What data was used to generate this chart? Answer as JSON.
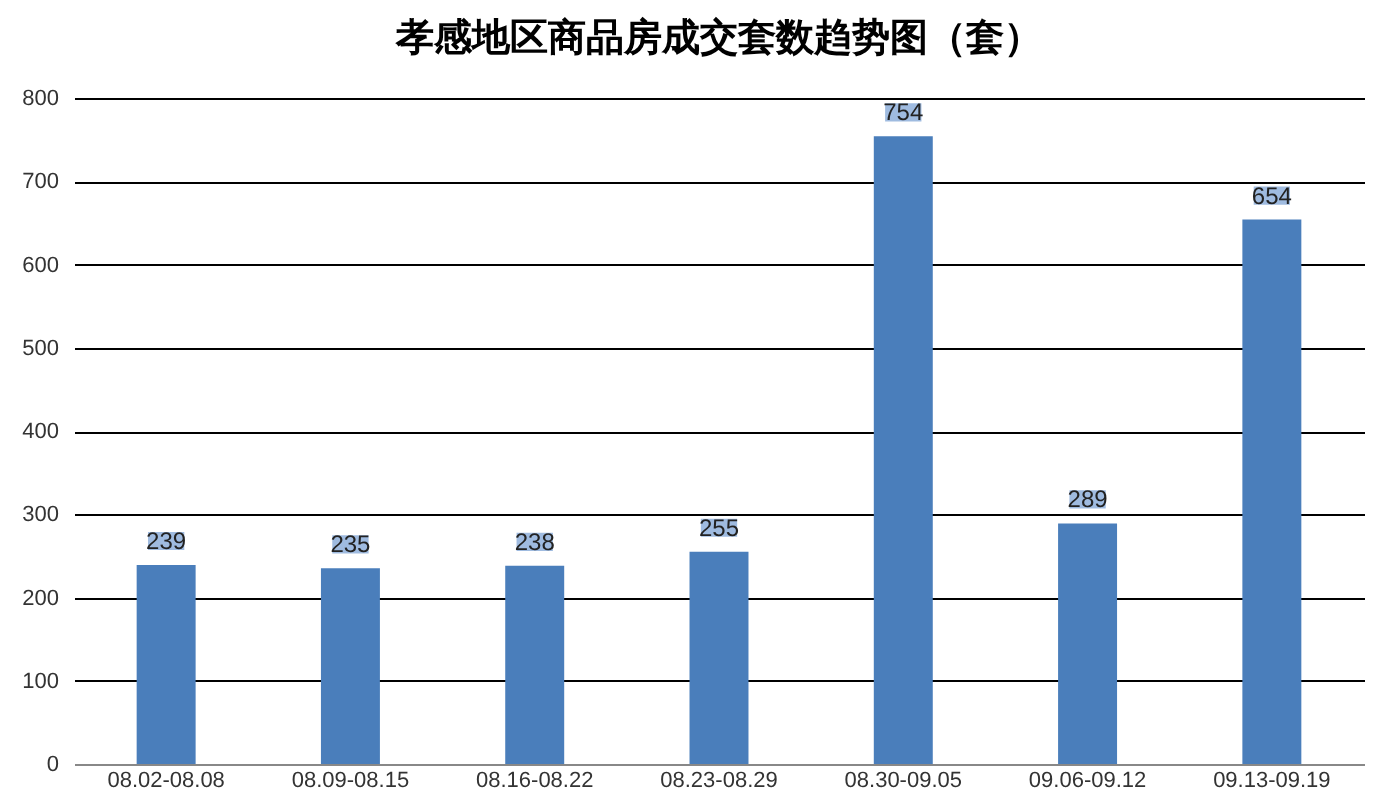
{
  "chart_data": {
    "type": "bar",
    "title": "孝感地区商品房成交套数趋势图（套）",
    "categories": [
      "08.02-08.08",
      "08.09-08.15",
      "08.16-08.22",
      "08.23-08.29",
      "08.30-09.05",
      "09.06-09.12",
      "09.13-09.19"
    ],
    "values": [
      239,
      235,
      238,
      255,
      754,
      289,
      654
    ],
    "color": "#4a7ebb",
    "ylim": [
      0,
      800
    ],
    "yticks": [
      0,
      100,
      200,
      300,
      400,
      500,
      600,
      700,
      800
    ],
    "grid": "y",
    "data_labels": true
  }
}
